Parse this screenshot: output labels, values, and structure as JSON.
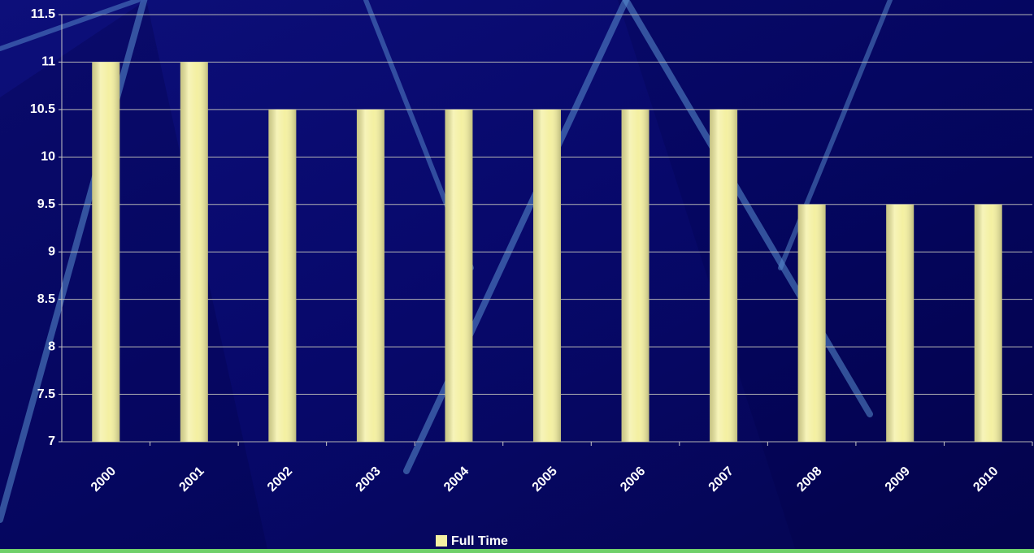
{
  "chart_data": {
    "type": "bar",
    "categories": [
      "2000",
      "2001",
      "2002",
      "2003",
      "2004",
      "2005",
      "2006",
      "2007",
      "2008",
      "2009",
      "2010"
    ],
    "series": [
      {
        "name": "Full Time",
        "color": "#f4f0a2",
        "values": [
          11,
          11,
          10.5,
          10.5,
          10.5,
          10.5,
          10.5,
          10.5,
          9.5,
          9.5,
          9.5
        ]
      }
    ],
    "ylim": [
      7,
      11.5
    ],
    "yticks": [
      7,
      7.5,
      8,
      8.5,
      9,
      9.5,
      10,
      10.5,
      11,
      11.5
    ],
    "grid": true,
    "legend": "bottom"
  }
}
